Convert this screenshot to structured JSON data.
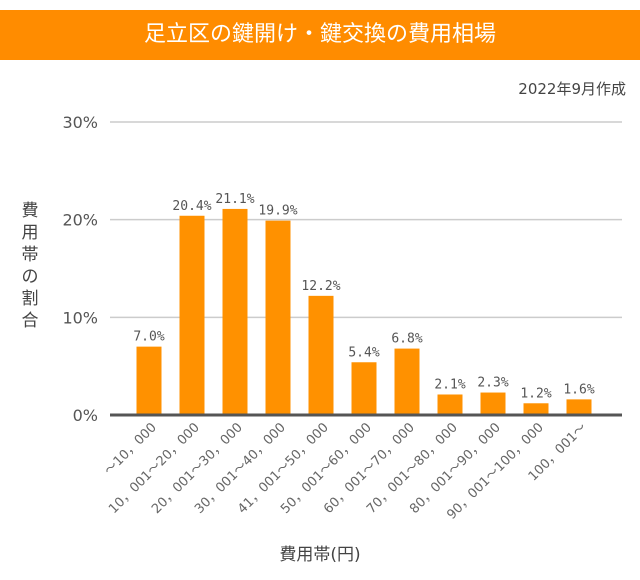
{
  "colors": {
    "title_bg": "#ff8c00",
    "bar": "#ff9100",
    "axis": "#555555",
    "grid": "#cccccc"
  },
  "header": {
    "title": "足立区の鍵開け・鍵交換の費用相場",
    "date": "2022年9月作成"
  },
  "chart_data": {
    "type": "bar",
    "title": "足立区の鍵開け・鍵交換の費用相場",
    "xlabel": "費用帯(円)",
    "ylabel": "費用帯の割合",
    "ylim": [
      0,
      30
    ],
    "yticks": [
      "0%",
      "10%",
      "20%",
      "30%"
    ],
    "grid": true,
    "categories": [
      "～10，000",
      "10，001～20，000",
      "20，001～30，000",
      "30，001～40，000",
      "41，001～50，000",
      "50，001～60，000",
      "60，001～70，000",
      "70，001～80，000",
      "80，001～90，000",
      "90，001～100，000",
      "100，001～"
    ],
    "values": [
      7.0,
      20.4,
      21.1,
      19.9,
      12.2,
      5.4,
      6.8,
      2.1,
      2.3,
      1.2,
      1.6
    ],
    "data_labels": [
      "7.0%",
      "20.4%",
      "21.1%",
      "19.9%",
      "12.2%",
      "5.4%",
      "6.8%",
      "2.1%",
      "2.3%",
      "1.2%",
      "1.6%"
    ]
  }
}
